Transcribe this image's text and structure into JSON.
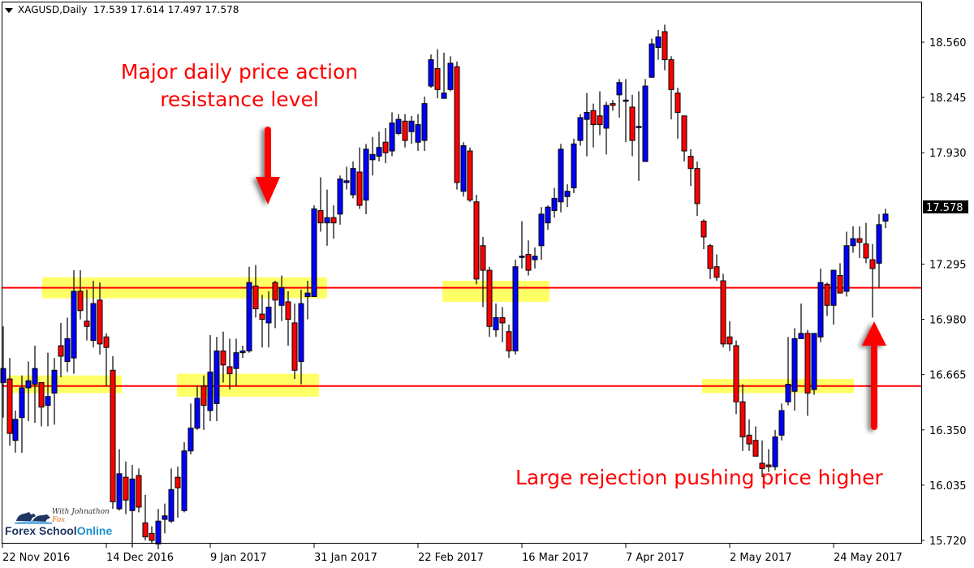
{
  "header": {
    "symbol_timeframe": "XAGUSD,Daily",
    "ohlc": "17.539 17.614 17.497 17.578"
  },
  "annotations": {
    "resistance_line1": "Major daily price action",
    "resistance_line2": "resistance level",
    "rejection": "Large rejection pushing price higher"
  },
  "logo": {
    "tagline_prefix": "With Johnathon ",
    "tagline_suffix": "Fox",
    "name_prefix": "Forex School",
    "name_suffix": "Online"
  },
  "colors": {
    "bull": "#0000ff",
    "bear": "#ff0000",
    "outline": "#000000",
    "level_line": "#ff0000",
    "zone": "#ffff66",
    "annotation": "#ff0000"
  },
  "chart_data": {
    "type": "candlestick",
    "title": "XAGUSD,Daily",
    "last_price": 17.578,
    "xlabel": "",
    "ylabel": "",
    "ylim": [
      15.6,
      18.72
    ],
    "yticks": [
      18.56,
      18.245,
      17.93,
      17.61,
      17.295,
      16.98,
      16.665,
      16.35,
      16.035,
      15.72
    ],
    "ytick_labels": [
      "18.560",
      "18.245",
      "17.930",
      "17.610",
      "17.295",
      "16.980",
      "16.665",
      "16.350",
      "16.035",
      "15.720"
    ],
    "xtick_labels": [
      "22 Nov 2016",
      "14 Dec 2016",
      "9 Jan 2017",
      "31 Jan 2017",
      "22 Feb 2017",
      "16 Mar 2017",
      "7 Apr 2017",
      "2 May 2017",
      "24 May 2017"
    ],
    "horizontal_levels": [
      17.16,
      16.6
    ],
    "zones": [
      {
        "x1": 52,
        "x2": 403,
        "low": 17.1,
        "high": 17.22
      },
      {
        "x1": 545,
        "x2": 677,
        "low": 17.08,
        "high": 17.2
      },
      {
        "x1": 10,
        "x2": 150,
        "low": 16.56,
        "high": 16.66
      },
      {
        "x1": 218,
        "x2": 393,
        "low": 16.54,
        "high": 16.67
      },
      {
        "x1": 865,
        "x2": 1052,
        "low": 16.56,
        "high": 16.64
      }
    ],
    "candles": [
      [
        4,
        16.62,
        16.7,
        16.94,
        16.42
      ],
      [
        12,
        16.64,
        16.33,
        16.76,
        16.26
      ],
      [
        19,
        16.29,
        16.41,
        16.46,
        16.22
      ],
      [
        27,
        16.42,
        16.59,
        16.66,
        16.22
      ],
      [
        35,
        16.59,
        16.63,
        16.74,
        16.4
      ],
      [
        43,
        16.61,
        16.7,
        16.83,
        16.39
      ],
      [
        51,
        16.62,
        16.48,
        16.62,
        16.37
      ],
      [
        59,
        16.49,
        16.54,
        16.79,
        16.37
      ],
      [
        67,
        16.56,
        16.69,
        16.76,
        16.38
      ],
      [
        75,
        16.83,
        16.77,
        16.96,
        16.65
      ],
      [
        83,
        16.74,
        16.87,
        16.99,
        16.68
      ],
      [
        91,
        16.76,
        17.14,
        17.26,
        16.67
      ],
      [
        99,
        17.14,
        17.03,
        17.26,
        16.98
      ],
      [
        107,
        16.97,
        16.94,
        17.15,
        16.86
      ],
      [
        115,
        16.86,
        17.07,
        17.2,
        16.82
      ],
      [
        123,
        17.09,
        16.84,
        17.19,
        16.78
      ],
      [
        131,
        16.88,
        16.82,
        16.9,
        16.6
      ],
      [
        139,
        16.69,
        15.94,
        16.77,
        15.9
      ],
      [
        147,
        15.9,
        16.1,
        16.24,
        15.89
      ],
      [
        155,
        16.08,
        15.95,
        16.17,
        15.87
      ],
      [
        163,
        15.89,
        16.07,
        16.15,
        15.68
      ],
      [
        171,
        16.09,
        15.91,
        16.13,
        15.88
      ],
      [
        179,
        15.82,
        15.74,
        15.98,
        15.72
      ],
      [
        187,
        15.76,
        15.72,
        15.8,
        15.7
      ],
      [
        195,
        15.7,
        15.83,
        15.9,
        15.67
      ],
      [
        203,
        15.84,
        15.86,
        15.93,
        15.76
      ],
      [
        211,
        15.83,
        16.01,
        16.13,
        15.82
      ],
      [
        219,
        16.08,
        16.02,
        16.14,
        15.85
      ],
      [
        227,
        15.89,
        16.23,
        16.28,
        15.88
      ],
      [
        235,
        16.23,
        16.36,
        16.5,
        16.21
      ],
      [
        243,
        16.36,
        16.53,
        16.6,
        16.35
      ],
      [
        251,
        16.6,
        16.49,
        16.66,
        16.35
      ],
      [
        259,
        16.46,
        16.68,
        16.89,
        16.4
      ],
      [
        267,
        16.5,
        16.8,
        16.88,
        16.4
      ],
      [
        275,
        16.8,
        16.72,
        16.91,
        16.62
      ],
      [
        283,
        16.71,
        16.67,
        16.87,
        16.58
      ],
      [
        291,
        16.7,
        16.79,
        16.87,
        16.6
      ],
      [
        299,
        16.79,
        16.8,
        16.83,
        16.76
      ],
      [
        307,
        16.8,
        17.19,
        17.28,
        16.79
      ],
      [
        315,
        17.17,
        17.04,
        17.29,
        16.99
      ],
      [
        323,
        17.01,
        16.98,
        17.12,
        16.82
      ],
      [
        331,
        16.96,
        17.05,
        17.14,
        16.82
      ],
      [
        339,
        17.19,
        17.09,
        17.2,
        16.93
      ],
      [
        347,
        17.06,
        17.16,
        17.23,
        16.97
      ],
      [
        355,
        17.08,
        16.98,
        17.14,
        16.83
      ],
      [
        363,
        16.96,
        16.69,
        17.07,
        16.64
      ],
      [
        371,
        16.74,
        17.07,
        17.15,
        16.61
      ],
      [
        379,
        17.11,
        17.13,
        17.2,
        16.98
      ],
      [
        387,
        17.11,
        17.61,
        17.63,
        17.11
      ],
      [
        395,
        17.6,
        17.53,
        17.79,
        17.48
      ],
      [
        403,
        17.53,
        17.56,
        17.72,
        17.4
      ],
      [
        411,
        17.56,
        17.53,
        17.63,
        17.44
      ],
      [
        419,
        17.58,
        17.78,
        17.8,
        17.52
      ],
      [
        427,
        17.76,
        17.77,
        17.85,
        17.72
      ],
      [
        435,
        17.69,
        17.84,
        17.88,
        17.67
      ],
      [
        443,
        17.82,
        17.63,
        17.96,
        17.61
      ],
      [
        451,
        17.66,
        17.95,
        17.98,
        17.58
      ],
      [
        459,
        17.89,
        17.92,
        18.02,
        17.8
      ],
      [
        467,
        17.91,
        17.96,
        18.05,
        17.88
      ],
      [
        475,
        17.99,
        17.93,
        18.07,
        17.87
      ],
      [
        483,
        17.94,
        18.1,
        18.16,
        17.91
      ],
      [
        491,
        18.04,
        18.12,
        18.15,
        18.03
      ],
      [
        499,
        18.11,
        18.0,
        18.15,
        17.96
      ],
      [
        507,
        18.05,
        18.11,
        18.14,
        17.98
      ],
      [
        515,
        17.99,
        18.09,
        18.15,
        17.94
      ],
      [
        523,
        18.0,
        18.21,
        18.25,
        17.94
      ],
      [
        531,
        18.31,
        18.46,
        18.49,
        18.3
      ],
      [
        539,
        18.41,
        18.29,
        18.52,
        18.24
      ],
      [
        547,
        18.24,
        18.27,
        18.5,
        18.26
      ],
      [
        555,
        18.29,
        18.44,
        18.48,
        18.28
      ],
      [
        563,
        18.42,
        17.76,
        18.45,
        17.72
      ],
      [
        571,
        17.71,
        17.97,
        17.99,
        17.68
      ],
      [
        579,
        17.94,
        17.66,
        17.96,
        17.65
      ],
      [
        587,
        17.65,
        17.21,
        17.69,
        17.18
      ],
      [
        595,
        17.4,
        17.26,
        17.45,
        17.05
      ],
      [
        603,
        17.26,
        16.94,
        17.28,
        16.88
      ],
      [
        611,
        16.92,
        16.99,
        17.07,
        16.88
      ],
      [
        619,
        16.99,
        16.96,
        17.05,
        16.85
      ],
      [
        627,
        16.91,
        16.8,
        16.95,
        16.76
      ],
      [
        635,
        16.8,
        17.28,
        17.32,
        16.78
      ],
      [
        643,
        17.34,
        17.34,
        17.54,
        17.27
      ],
      [
        651,
        17.35,
        17.26,
        17.43,
        17.23
      ],
      [
        659,
        17.32,
        17.34,
        17.39,
        17.27
      ],
      [
        667,
        17.4,
        17.58,
        17.62,
        17.32
      ],
      [
        675,
        17.53,
        17.62,
        17.63,
        17.49
      ],
      [
        683,
        17.6,
        17.67,
        17.73,
        17.56
      ],
      [
        691,
        17.65,
        17.95,
        17.98,
        17.59
      ],
      [
        699,
        17.68,
        17.71,
        17.75,
        17.62
      ],
      [
        707,
        17.73,
        17.98,
        18.01,
        17.7
      ],
      [
        715,
        18.0,
        18.13,
        18.15,
        17.97
      ],
      [
        723,
        18.12,
        18.16,
        18.27,
        17.91
      ],
      [
        731,
        18.17,
        18.09,
        18.21,
        17.96
      ],
      [
        739,
        18.14,
        18.09,
        18.28,
        18.03
      ],
      [
        747,
        18.07,
        18.2,
        18.22,
        17.92
      ],
      [
        755,
        18.21,
        18.2,
        18.23,
        18.17
      ],
      [
        763,
        18.26,
        18.33,
        18.35,
        18.13
      ],
      [
        771,
        18.23,
        18.23,
        18.35,
        17.99
      ],
      [
        779,
        18.19,
        18.0,
        18.26,
        17.91
      ],
      [
        787,
        18.08,
        18.08,
        18.28,
        17.77
      ],
      [
        795,
        17.88,
        18.31,
        18.35,
        17.91
      ],
      [
        803,
        18.36,
        18.55,
        18.58,
        18.36
      ],
      [
        811,
        18.53,
        18.59,
        18.63,
        18.46
      ],
      [
        819,
        18.62,
        18.46,
        18.66,
        18.4
      ],
      [
        827,
        18.46,
        18.29,
        18.48,
        18.12
      ],
      [
        835,
        18.27,
        18.16,
        18.3,
        18.01
      ],
      [
        843,
        18.14,
        17.94,
        18.14,
        17.88
      ],
      [
        851,
        17.91,
        17.84,
        17.95,
        17.74
      ],
      [
        859,
        17.84,
        17.64,
        17.88,
        17.57
      ],
      [
        867,
        17.54,
        17.45,
        17.55,
        17.38
      ],
      [
        875,
        17.4,
        17.27,
        17.41,
        17.21
      ],
      [
        883,
        17.28,
        17.22,
        17.35,
        17.2
      ],
      [
        891,
        17.2,
        16.84,
        17.24,
        16.82
      ],
      [
        899,
        16.88,
        16.84,
        16.97,
        16.8
      ],
      [
        907,
        16.83,
        16.51,
        16.86,
        16.44
      ],
      [
        915,
        16.51,
        16.31,
        16.61,
        16.23
      ],
      [
        923,
        16.32,
        16.27,
        16.41,
        16.23
      ],
      [
        931,
        16.29,
        16.2,
        16.37,
        16.21
      ],
      [
        939,
        16.16,
        16.13,
        16.29,
        16.08
      ],
      [
        947,
        16.15,
        16.14,
        16.24,
        16.11
      ],
      [
        955,
        16.14,
        16.31,
        16.35,
        16.12
      ],
      [
        963,
        16.32,
        16.46,
        16.5,
        16.29
      ],
      [
        971,
        16.51,
        16.61,
        16.88,
        16.49
      ],
      [
        979,
        16.57,
        16.87,
        16.93,
        16.46
      ],
      [
        987,
        16.87,
        16.9,
        17.07,
        16.87
      ],
      [
        995,
        16.9,
        16.56,
        16.92,
        16.43
      ],
      [
        1003,
        16.58,
        16.9,
        16.9,
        16.55
      ],
      [
        1011,
        16.88,
        17.19,
        17.27,
        16.85
      ],
      [
        1019,
        17.18,
        17.06,
        17.19,
        17.0
      ],
      [
        1027,
        17.06,
        17.26,
        17.26,
        16.95
      ],
      [
        1035,
        17.23,
        17.13,
        17.3,
        17.14
      ],
      [
        1043,
        17.14,
        17.4,
        17.48,
        17.11
      ],
      [
        1051,
        17.4,
        17.44,
        17.51,
        17.36
      ],
      [
        1059,
        17.44,
        17.42,
        17.51,
        17.33
      ],
      [
        1067,
        17.41,
        17.33,
        17.53,
        17.3
      ],
      [
        1075,
        17.32,
        17.27,
        17.41,
        16.99
      ],
      [
        1083,
        17.3,
        17.52,
        17.58,
        17.16
      ],
      [
        1091,
        17.54,
        17.58,
        17.61,
        17.5
      ]
    ]
  }
}
